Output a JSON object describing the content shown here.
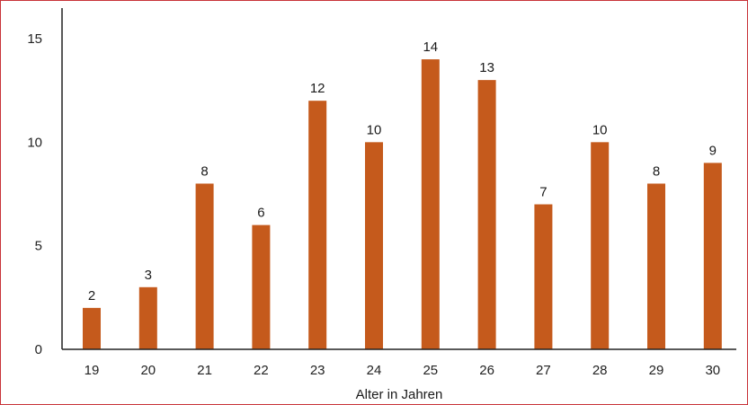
{
  "chart_data": {
    "type": "bar",
    "title": "",
    "xlabel": "Alter in Jahren",
    "ylabel": "",
    "categories": [
      "19",
      "20",
      "21",
      "22",
      "23",
      "24",
      "25",
      "26",
      "27",
      "28",
      "29",
      "30"
    ],
    "values": [
      2,
      3,
      8,
      6,
      12,
      10,
      14,
      13,
      7,
      10,
      8,
      9
    ],
    "data_labels": [
      "2",
      "3",
      "8",
      "6",
      "12",
      "10",
      "14",
      "13",
      "7",
      "10",
      "8",
      "9"
    ],
    "y_ticks": [
      "0",
      "5",
      "10",
      "15"
    ],
    "ylim": [
      0,
      15
    ],
    "grid": false,
    "legend": "none",
    "bar_color": "#c55a1c",
    "border_color": "#c8343a"
  }
}
